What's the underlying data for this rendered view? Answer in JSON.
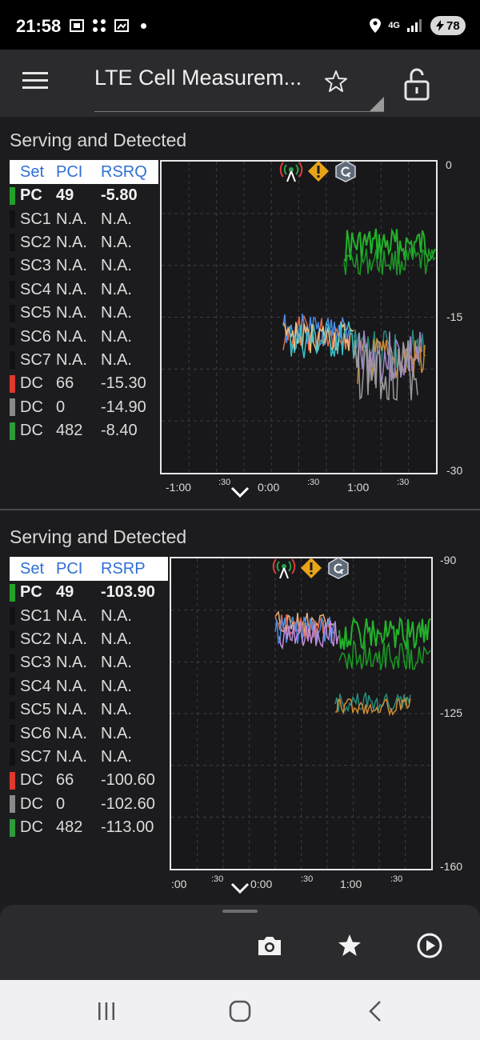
{
  "status_bar": {
    "time": "21:58",
    "network": "4G",
    "battery": "78"
  },
  "app_bar": {
    "title": "LTE Cell Measurem..."
  },
  "panels": [
    {
      "title": "Serving and Detected",
      "columns": [
        "Set",
        "PCI",
        "RSRQ"
      ],
      "rows": [
        {
          "set": "PC",
          "pci": "49",
          "value": "-5.80",
          "color": "#22a02a",
          "bold": true
        },
        {
          "set": "SC1",
          "pci": "N.A.",
          "value": "N.A.",
          "color": "#111113"
        },
        {
          "set": "SC2",
          "pci": "N.A.",
          "value": "N.A.",
          "color": "#111113"
        },
        {
          "set": "SC3",
          "pci": "N.A.",
          "value": "N.A.",
          "color": "#111113"
        },
        {
          "set": "SC4",
          "pci": "N.A.",
          "value": "N.A.",
          "color": "#111113"
        },
        {
          "set": "SC5",
          "pci": "N.A.",
          "value": "N.A.",
          "color": "#111113"
        },
        {
          "set": "SC6",
          "pci": "N.A.",
          "value": "N.A.",
          "color": "#111113"
        },
        {
          "set": "SC7",
          "pci": "N.A.",
          "value": "N.A.",
          "color": "#111113"
        },
        {
          "set": "DC",
          "pci": "66",
          "value": "-15.30",
          "color": "#e0382b"
        },
        {
          "set": "DC",
          "pci": "0",
          "value": "-14.90",
          "color": "#8a8a8a"
        },
        {
          "set": "DC",
          "pci": "482",
          "value": "-8.40",
          "color": "#2e9a3a"
        }
      ],
      "y_ticks": [
        "0",
        "-15",
        "-30"
      ],
      "x_ticks": [
        "-1:00",
        ":30",
        "0:00",
        ":30",
        "1:00",
        ":30"
      ]
    },
    {
      "title": "Serving and Detected",
      "columns": [
        "Set",
        "PCI",
        "RSRP"
      ],
      "rows": [
        {
          "set": "PC",
          "pci": "49",
          "value": "-103.90",
          "color": "#22a02a",
          "bold": true
        },
        {
          "set": "SC1",
          "pci": "N.A.",
          "value": "N.A.",
          "color": "#111113"
        },
        {
          "set": "SC2",
          "pci": "N.A.",
          "value": "N.A.",
          "color": "#111113"
        },
        {
          "set": "SC3",
          "pci": "N.A.",
          "value": "N.A.",
          "color": "#111113"
        },
        {
          "set": "SC4",
          "pci": "N.A.",
          "value": "N.A.",
          "color": "#111113"
        },
        {
          "set": "SC5",
          "pci": "N.A.",
          "value": "N.A.",
          "color": "#111113"
        },
        {
          "set": "SC6",
          "pci": "N.A.",
          "value": "N.A.",
          "color": "#111113"
        },
        {
          "set": "SC7",
          "pci": "N.A.",
          "value": "N.A.",
          "color": "#111113"
        },
        {
          "set": "DC",
          "pci": "66",
          "value": "-100.60",
          "color": "#e0382b"
        },
        {
          "set": "DC",
          "pci": "0",
          "value": "-102.60",
          "color": "#8a8a8a"
        },
        {
          "set": "DC",
          "pci": "482",
          "value": "-113.00",
          "color": "#2e9a3a"
        }
      ],
      "y_ticks": [
        "-90",
        "-125",
        "-160"
      ],
      "x_ticks": [
        ":00",
        ":30",
        "0:00",
        ":30",
        "1:00",
        ":30"
      ]
    }
  ],
  "icons": {
    "menu": "menu-icon",
    "favorite": "star-outline-icon",
    "lock": "unlock-icon",
    "camera": "camera-icon",
    "bookmark": "star-filled-icon",
    "play": "play-circle-icon"
  }
}
